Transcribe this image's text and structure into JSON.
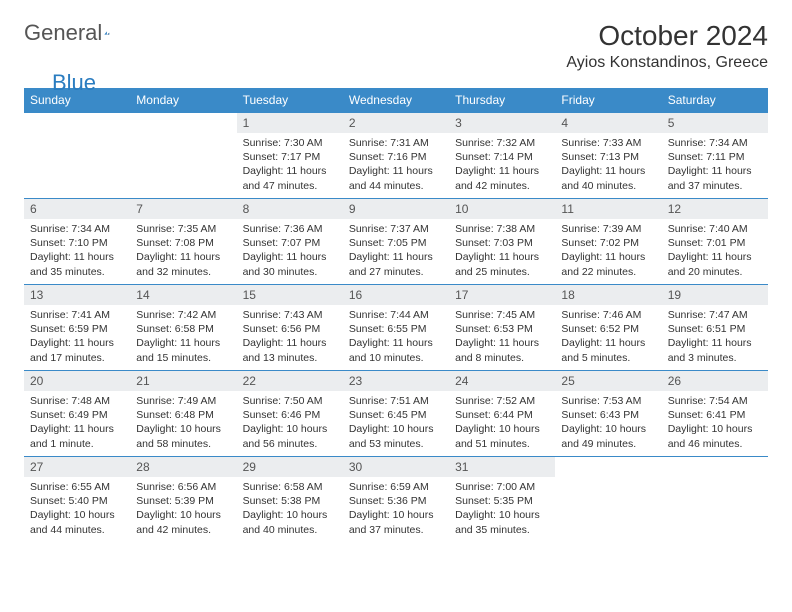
{
  "brand": {
    "name1": "General",
    "name2": "Blue"
  },
  "header": {
    "title": "October 2024",
    "location": "Ayios Konstandinos, Greece"
  },
  "colors": {
    "header_bg": "#3a8ac8",
    "header_text": "#ffffff",
    "daynum_bg": "#ebedef",
    "border": "#3a8ac8",
    "brand_blue": "#2a7cc0"
  },
  "dow": [
    "Sunday",
    "Monday",
    "Tuesday",
    "Wednesday",
    "Thursday",
    "Friday",
    "Saturday"
  ],
  "weeks": [
    [
      null,
      null,
      {
        "n": "1",
        "sr": "7:30 AM",
        "ss": "7:17 PM",
        "dl": "11 hours and 47 minutes."
      },
      {
        "n": "2",
        "sr": "7:31 AM",
        "ss": "7:16 PM",
        "dl": "11 hours and 44 minutes."
      },
      {
        "n": "3",
        "sr": "7:32 AM",
        "ss": "7:14 PM",
        "dl": "11 hours and 42 minutes."
      },
      {
        "n": "4",
        "sr": "7:33 AM",
        "ss": "7:13 PM",
        "dl": "11 hours and 40 minutes."
      },
      {
        "n": "5",
        "sr": "7:34 AM",
        "ss": "7:11 PM",
        "dl": "11 hours and 37 minutes."
      }
    ],
    [
      {
        "n": "6",
        "sr": "7:34 AM",
        "ss": "7:10 PM",
        "dl": "11 hours and 35 minutes."
      },
      {
        "n": "7",
        "sr": "7:35 AM",
        "ss": "7:08 PM",
        "dl": "11 hours and 32 minutes."
      },
      {
        "n": "8",
        "sr": "7:36 AM",
        "ss": "7:07 PM",
        "dl": "11 hours and 30 minutes."
      },
      {
        "n": "9",
        "sr": "7:37 AM",
        "ss": "7:05 PM",
        "dl": "11 hours and 27 minutes."
      },
      {
        "n": "10",
        "sr": "7:38 AM",
        "ss": "7:03 PM",
        "dl": "11 hours and 25 minutes."
      },
      {
        "n": "11",
        "sr": "7:39 AM",
        "ss": "7:02 PM",
        "dl": "11 hours and 22 minutes."
      },
      {
        "n": "12",
        "sr": "7:40 AM",
        "ss": "7:01 PM",
        "dl": "11 hours and 20 minutes."
      }
    ],
    [
      {
        "n": "13",
        "sr": "7:41 AM",
        "ss": "6:59 PM",
        "dl": "11 hours and 17 minutes."
      },
      {
        "n": "14",
        "sr": "7:42 AM",
        "ss": "6:58 PM",
        "dl": "11 hours and 15 minutes."
      },
      {
        "n": "15",
        "sr": "7:43 AM",
        "ss": "6:56 PM",
        "dl": "11 hours and 13 minutes."
      },
      {
        "n": "16",
        "sr": "7:44 AM",
        "ss": "6:55 PM",
        "dl": "11 hours and 10 minutes."
      },
      {
        "n": "17",
        "sr": "7:45 AM",
        "ss": "6:53 PM",
        "dl": "11 hours and 8 minutes."
      },
      {
        "n": "18",
        "sr": "7:46 AM",
        "ss": "6:52 PM",
        "dl": "11 hours and 5 minutes."
      },
      {
        "n": "19",
        "sr": "7:47 AM",
        "ss": "6:51 PM",
        "dl": "11 hours and 3 minutes."
      }
    ],
    [
      {
        "n": "20",
        "sr": "7:48 AM",
        "ss": "6:49 PM",
        "dl": "11 hours and 1 minute."
      },
      {
        "n": "21",
        "sr": "7:49 AM",
        "ss": "6:48 PM",
        "dl": "10 hours and 58 minutes."
      },
      {
        "n": "22",
        "sr": "7:50 AM",
        "ss": "6:46 PM",
        "dl": "10 hours and 56 minutes."
      },
      {
        "n": "23",
        "sr": "7:51 AM",
        "ss": "6:45 PM",
        "dl": "10 hours and 53 minutes."
      },
      {
        "n": "24",
        "sr": "7:52 AM",
        "ss": "6:44 PM",
        "dl": "10 hours and 51 minutes."
      },
      {
        "n": "25",
        "sr": "7:53 AM",
        "ss": "6:43 PM",
        "dl": "10 hours and 49 minutes."
      },
      {
        "n": "26",
        "sr": "7:54 AM",
        "ss": "6:41 PM",
        "dl": "10 hours and 46 minutes."
      }
    ],
    [
      {
        "n": "27",
        "sr": "6:55 AM",
        "ss": "5:40 PM",
        "dl": "10 hours and 44 minutes."
      },
      {
        "n": "28",
        "sr": "6:56 AM",
        "ss": "5:39 PM",
        "dl": "10 hours and 42 minutes."
      },
      {
        "n": "29",
        "sr": "6:58 AM",
        "ss": "5:38 PM",
        "dl": "10 hours and 40 minutes."
      },
      {
        "n": "30",
        "sr": "6:59 AM",
        "ss": "5:36 PM",
        "dl": "10 hours and 37 minutes."
      },
      {
        "n": "31",
        "sr": "7:00 AM",
        "ss": "5:35 PM",
        "dl": "10 hours and 35 minutes."
      },
      null,
      null
    ]
  ],
  "labels": {
    "sunrise": "Sunrise:",
    "sunset": "Sunset:",
    "daylight": "Daylight:"
  }
}
